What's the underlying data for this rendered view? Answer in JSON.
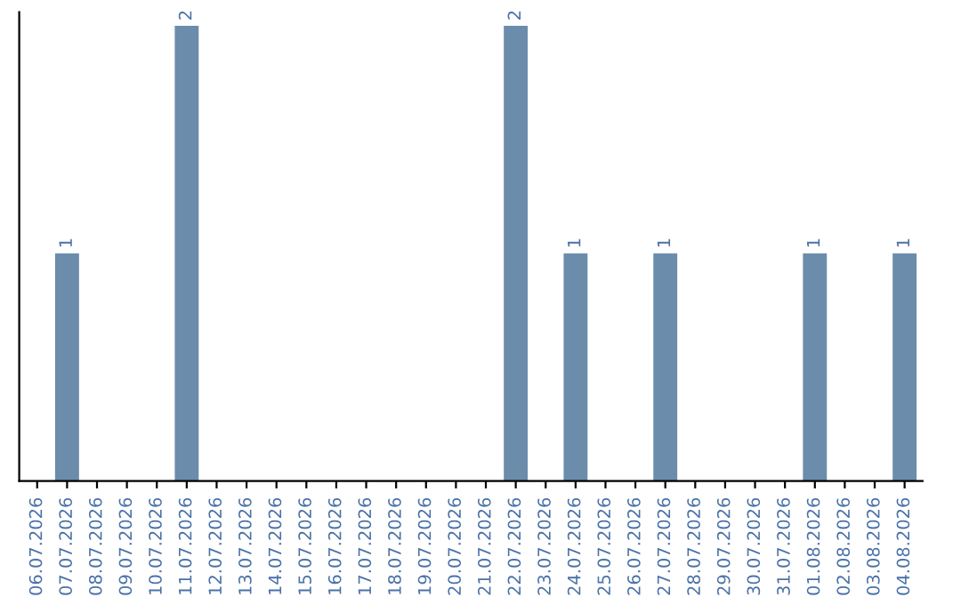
{
  "chart_data": {
    "type": "bar",
    "categories": [
      "06.07.2026",
      "07.07.2026",
      "08.07.2026",
      "09.07.2026",
      "10.07.2026",
      "11.07.2026",
      "12.07.2026",
      "13.07.2026",
      "14.07.2026",
      "15.07.2026",
      "16.07.2026",
      "17.07.2026",
      "18.07.2026",
      "19.07.2026",
      "20.07.2026",
      "21.07.2026",
      "22.07.2026",
      "23.07.2026",
      "24.07.2026",
      "25.07.2026",
      "26.07.2026",
      "27.07.2026",
      "28.07.2026",
      "29.07.2026",
      "30.07.2026",
      "31.07.2026",
      "01.08.2026",
      "02.08.2026",
      "03.08.2026",
      "04.08.2026"
    ],
    "values": [
      0,
      1,
      0,
      0,
      0,
      2,
      0,
      0,
      0,
      0,
      0,
      0,
      0,
      0,
      0,
      0,
      2,
      0,
      1,
      0,
      0,
      1,
      0,
      0,
      0,
      0,
      1,
      0,
      0,
      1
    ],
    "value_labels": [
      null,
      "1",
      null,
      null,
      null,
      "2",
      null,
      null,
      null,
      null,
      null,
      null,
      null,
      null,
      null,
      null,
      "2",
      null,
      "1",
      null,
      null,
      "1",
      null,
      null,
      null,
      null,
      "1",
      null,
      null,
      "1"
    ],
    "color": "#6b8cab",
    "tick_labels": "x",
    "grid": false,
    "legend": false
  }
}
